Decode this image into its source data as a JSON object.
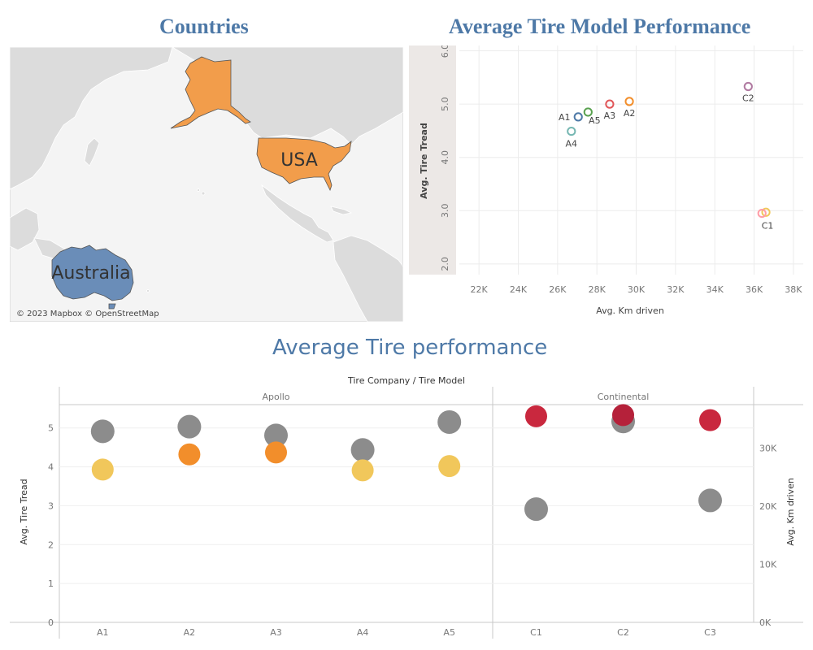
{
  "colors": {
    "title": "#4e79a7",
    "usa": "#f29d4b",
    "australia": "#6a8db8",
    "land": "#dcdcdc",
    "sea": "#f4f4f4",
    "grey_mark": "#8c8c8c",
    "continental_red": "#c9283e",
    "apollo_orange": "#f28e2b",
    "apollo_yellow": "#f1c75b"
  },
  "map": {
    "title": "Countries",
    "labels": {
      "usa": "USA",
      "australia": "Australia"
    },
    "attribution": "© 2023 Mapbox © OpenStreetMap"
  },
  "scatter": {
    "title": "Average Tire Model Performance",
    "xlabel": "Avg. Km driven",
    "ylabel": "Avg. Tire Tread",
    "xticks": [
      "22K",
      "24K",
      "26K",
      "28K",
      "30K",
      "32K",
      "34K",
      "36K",
      "38K"
    ],
    "yticks": [
      "2.0",
      "3.0",
      "4.0",
      "5.0",
      "6.0"
    ]
  },
  "bottom": {
    "title": "Average Tire performance",
    "header": "Tire Company  /  Tire Model",
    "groups": [
      "Apollo",
      "Continental"
    ],
    "left_axis_label": "Avg. Tire Tread",
    "right_axis_label": "Avg. Km driven",
    "left_ticks": [
      "0",
      "1",
      "2",
      "3",
      "4",
      "5"
    ],
    "right_ticks": [
      "0K",
      "10K",
      "20K",
      "30K"
    ]
  },
  "chart_data": [
    {
      "type": "scatter",
      "title": "Average Tire Model Performance",
      "xlabel": "Avg. Km driven",
      "ylabel": "Avg. Tire Tread",
      "xlim": [
        21000,
        38500
      ],
      "ylim": [
        1.8,
        6.1
      ],
      "grid": true,
      "points": [
        {
          "label": "A1",
          "x": 27050,
          "y": 4.76,
          "color": "#4e79a7"
        },
        {
          "label": "A5",
          "x": 27550,
          "y": 4.85,
          "color": "#59a14f"
        },
        {
          "label": "A3",
          "x": 28650,
          "y": 5.0,
          "color": "#e15759"
        },
        {
          "label": "A2",
          "x": 29650,
          "y": 5.05,
          "color": "#f28e2b"
        },
        {
          "label": "A4",
          "x": 26700,
          "y": 4.49,
          "color": "#76b7b2"
        },
        {
          "label": "C2",
          "x": 35700,
          "y": 5.33,
          "color": "#b07aa1"
        },
        {
          "label": "C1",
          "x": 36600,
          "y": 2.97,
          "color": "#f1c75b"
        },
        {
          "label": "",
          "x": 36400,
          "y": 2.95,
          "color": "#ff9da7"
        }
      ]
    },
    {
      "type": "scatter",
      "title": "Average Tire performance",
      "categories": [
        "A1",
        "A2",
        "A3",
        "A4",
        "A5",
        "C1",
        "C2",
        "C3"
      ],
      "groups": [
        {
          "name": "Apollo",
          "categories": [
            "A1",
            "A2",
            "A3",
            "A4",
            "A5"
          ]
        },
        {
          "name": "Continental",
          "categories": [
            "C1",
            "C2",
            "C3"
          ]
        }
      ],
      "left_ylabel": "Avg. Tire Tread",
      "right_ylabel": "Avg. Km driven",
      "left_ylim": [
        0,
        5.6
      ],
      "right_ylim": [
        0,
        37500
      ],
      "series": [
        {
          "axis": "left",
          "values": [
            3.93,
            4.32,
            4.37,
            3.91,
            4.02,
            5.3,
            5.33,
            5.2
          ],
          "colors": [
            "#f1c75b",
            "#f28e2b",
            "#f28e2b",
            "#f1c75b",
            "#f1c75b",
            "#c9283e",
            "#b5213a",
            "#c9283e"
          ]
        },
        {
          "axis": "right",
          "values": [
            32900,
            33700,
            32200,
            29700,
            34500,
            19500,
            34600,
            21000
          ],
          "colors": [
            "#8c8c8c",
            "#8c8c8c",
            "#8c8c8c",
            "#8c8c8c",
            "#8c8c8c",
            "#8c8c8c",
            "#8c8c8c",
            "#8c8c8c"
          ]
        }
      ]
    }
  ]
}
